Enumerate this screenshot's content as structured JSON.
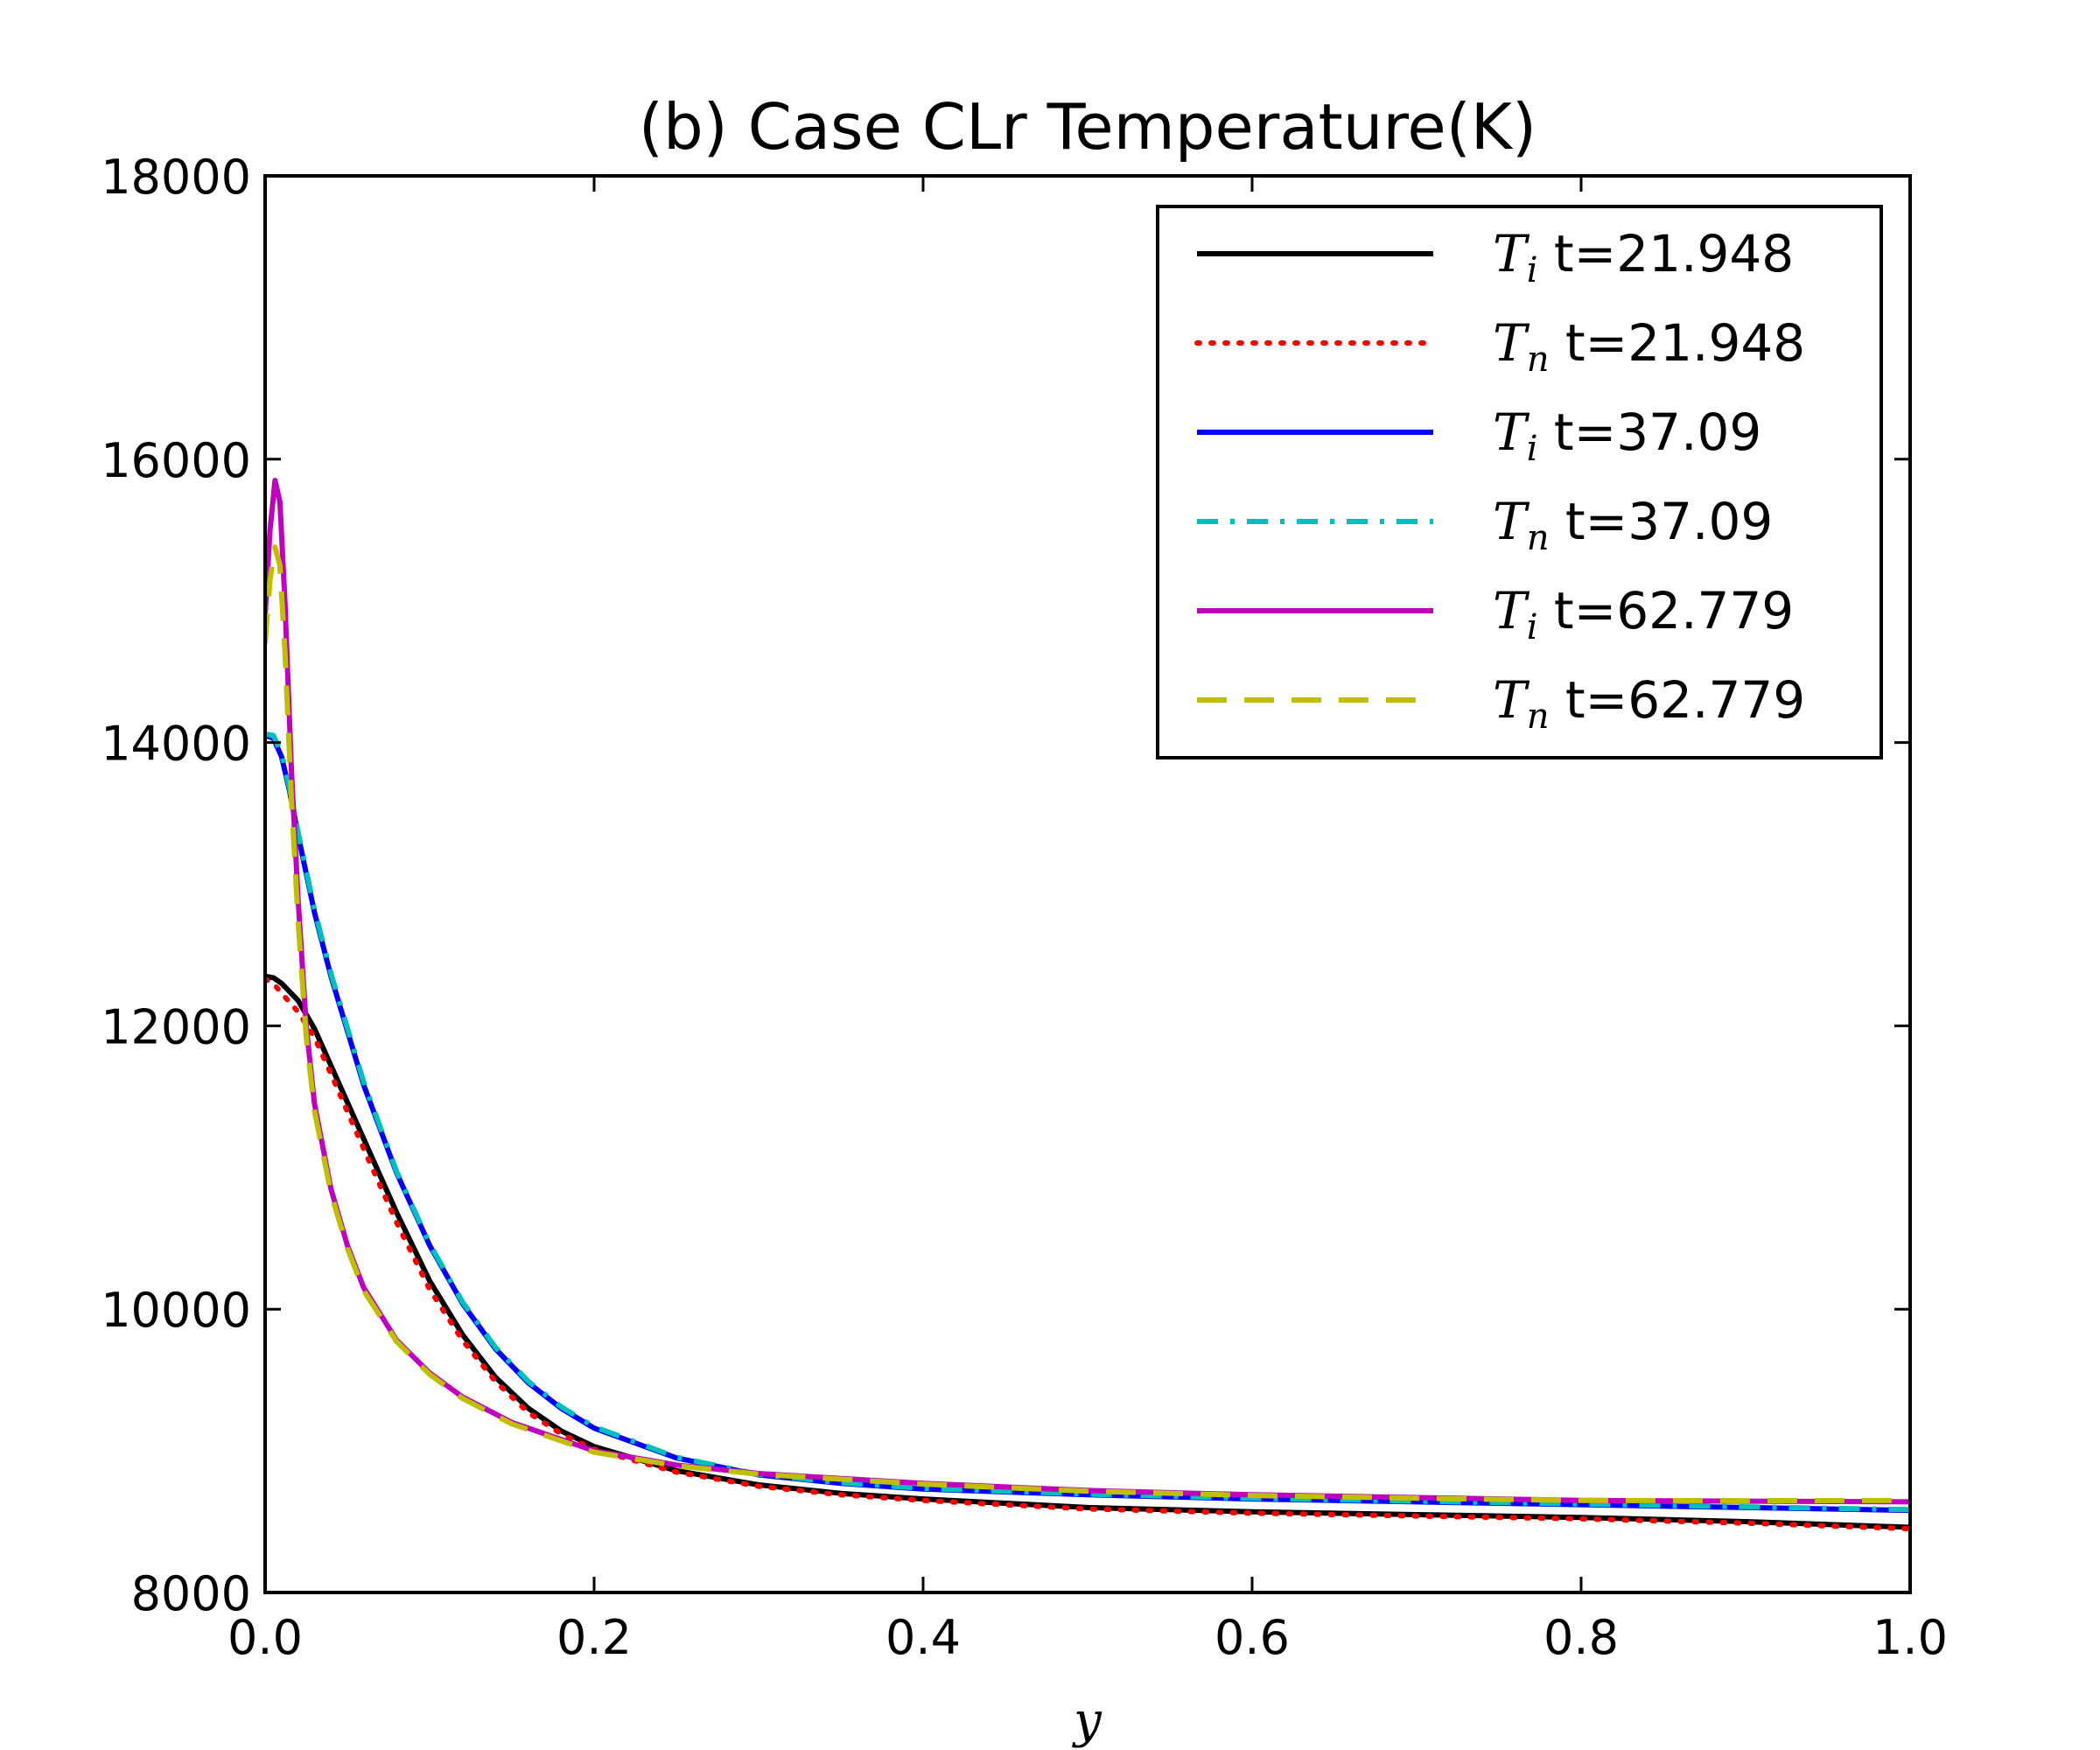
{
  "chart_data": {
    "type": "line",
    "title": "(b) Case CLr Temperature(K)",
    "xlabel": "y",
    "ylabel": "",
    "xlim": [
      0.0,
      1.0
    ],
    "ylim": [
      8000,
      18000
    ],
    "x_ticks": [
      "0.0",
      "0.2",
      "0.4",
      "0.6",
      "0.8",
      "1.0"
    ],
    "y_ticks": [
      "8000",
      "10000",
      "12000",
      "14000",
      "16000",
      "18000"
    ],
    "grid": false,
    "legend_position": "top-right",
    "series": [
      {
        "legend_symbol": "T",
        "legend_subscript": "i",
        "legend_text": "t=21.948",
        "color": "#000000",
        "style": "solid",
        "x": [
          0,
          0.005,
          0.01,
          0.02,
          0.03,
          0.04,
          0.06,
          0.08,
          0.1,
          0.12,
          0.14,
          0.16,
          0.18,
          0.2,
          0.25,
          0.3,
          0.35,
          0.4,
          0.5,
          0.6,
          0.7,
          0.8,
          0.9,
          1.0
        ],
        "y": [
          12350,
          12340,
          12300,
          12180,
          11980,
          11720,
          11200,
          10680,
          10200,
          9820,
          9520,
          9300,
          9140,
          9030,
          8860,
          8760,
          8700,
          8660,
          8600,
          8570,
          8550,
          8530,
          8500,
          8460
        ]
      },
      {
        "legend_symbol": "T",
        "legend_subscript": "n",
        "legend_text": "t=21.948",
        "color": "#ff0000",
        "style": "dotted",
        "x": [
          0,
          0.005,
          0.01,
          0.02,
          0.03,
          0.04,
          0.06,
          0.08,
          0.1,
          0.12,
          0.14,
          0.16,
          0.18,
          0.2,
          0.25,
          0.3,
          0.35,
          0.4,
          0.5,
          0.6,
          0.7,
          0.8,
          0.9,
          1.0
        ],
        "y": [
          12330,
          12300,
          12230,
          12100,
          11920,
          11660,
          11130,
          10610,
          10140,
          9780,
          9490,
          9270,
          9120,
          9010,
          8850,
          8750,
          8690,
          8650,
          8590,
          8560,
          8540,
          8520,
          8490,
          8450
        ]
      },
      {
        "legend_symbol": "T",
        "legend_subscript": "i",
        "legend_text": "t=37.09",
        "color": "#0000ff",
        "style": "solid",
        "x": [
          0,
          0.005,
          0.01,
          0.015,
          0.02,
          0.03,
          0.04,
          0.06,
          0.08,
          0.1,
          0.12,
          0.14,
          0.16,
          0.18,
          0.2,
          0.25,
          0.3,
          0.35,
          0.4,
          0.5,
          0.6,
          0.7,
          0.8,
          0.9,
          1.0
        ],
        "y": [
          14050,
          14030,
          13900,
          13650,
          13350,
          12800,
          12350,
          11580,
          10960,
          10450,
          10040,
          9720,
          9480,
          9300,
          9160,
          8950,
          8830,
          8770,
          8730,
          8690,
          8660,
          8640,
          8620,
          8600,
          8580
        ]
      },
      {
        "legend_symbol": "T",
        "legend_subscript": "n",
        "legend_text": "t=37.09",
        "color": "#00bfbf",
        "style": "dashdot",
        "x": [
          0,
          0.005,
          0.01,
          0.015,
          0.02,
          0.03,
          0.04,
          0.06,
          0.08,
          0.1,
          0.12,
          0.14,
          0.16,
          0.18,
          0.2,
          0.25,
          0.3,
          0.35,
          0.4,
          0.5,
          0.6,
          0.7,
          0.8,
          0.9,
          1.0
        ],
        "y": [
          14060,
          14050,
          13920,
          13670,
          13370,
          12820,
          12370,
          11600,
          10970,
          10460,
          10050,
          9730,
          9490,
          9310,
          9170,
          8955,
          8835,
          8775,
          8735,
          8695,
          8665,
          8645,
          8625,
          8605,
          8585
        ]
      },
      {
        "legend_symbol": "T",
        "legend_subscript": "i",
        "legend_text": "t=62.779",
        "color": "#bf00bf",
        "style": "solid",
        "x": [
          0,
          0.003,
          0.006,
          0.009,
          0.012,
          0.016,
          0.02,
          0.025,
          0.03,
          0.04,
          0.05,
          0.06,
          0.08,
          0.1,
          0.12,
          0.15,
          0.2,
          0.25,
          0.3,
          0.4,
          0.5,
          0.6,
          0.7,
          0.8,
          0.9,
          1.0
        ],
        "y": [
          14900,
          15500,
          15850,
          15700,
          15000,
          13800,
          12900,
          12000,
          11450,
          10850,
          10450,
          10150,
          9780,
          9550,
          9380,
          9200,
          9000,
          8900,
          8840,
          8770,
          8720,
          8690,
          8670,
          8650,
          8645,
          8640
        ]
      },
      {
        "legend_symbol": "T",
        "legend_subscript": "n",
        "legend_text": "t=62.779",
        "color": "#bfbf00",
        "style": "dashed",
        "x": [
          0,
          0.003,
          0.006,
          0.009,
          0.012,
          0.016,
          0.02,
          0.025,
          0.03,
          0.04,
          0.05,
          0.06,
          0.08,
          0.1,
          0.12,
          0.15,
          0.2,
          0.25,
          0.3,
          0.4,
          0.5,
          0.6,
          0.7,
          0.8,
          0.9,
          1.0
        ],
        "y": [
          14700,
          15150,
          15380,
          15250,
          14650,
          13600,
          12750,
          11920,
          11400,
          10820,
          10430,
          10130,
          9770,
          9540,
          9370,
          9190,
          8990,
          8895,
          8835,
          8765,
          8715,
          8685,
          8665,
          8650,
          8648,
          8650
        ]
      }
    ]
  }
}
